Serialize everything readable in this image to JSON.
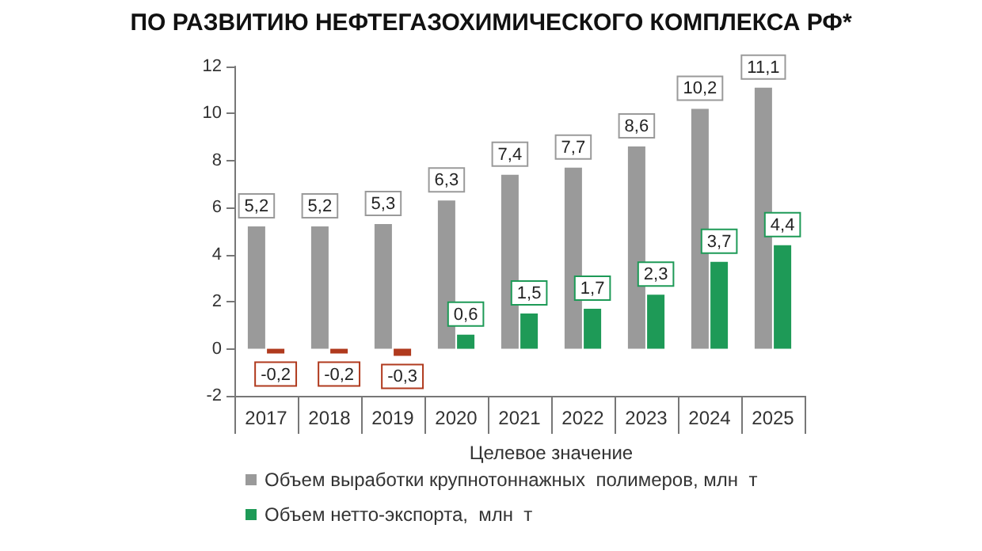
{
  "chart_data": {
    "type": "bar",
    "title": "ПО РАЗВИТИЮ НЕФТЕГАЗОХИМИЧЕСКОГО КОМПЛЕКСА РФ*",
    "xlabel": "Целевое значение",
    "categories": [
      "2017",
      "2018",
      "2019",
      "2020",
      "2021",
      "2022",
      "2023",
      "2024",
      "2025"
    ],
    "series": [
      {
        "name": "Объем выработки крупнотоннажных  полимеров, млн  т",
        "color": "#9a9a9a",
        "values": [
          5.2,
          5.2,
          5.3,
          6.3,
          7.4,
          7.7,
          8.6,
          10.2,
          11.1
        ],
        "value_labels": [
          "5,2",
          "5,2",
          "5,3",
          "6,3",
          "7,4",
          "7,7",
          "8,6",
          "10,2",
          "11,1"
        ]
      },
      {
        "name": "Объем нетто-экспорта,  млн  т",
        "color": "#1e9a57",
        "colors": [
          "#b03a1e",
          "#b03a1e",
          "#b03a1e",
          "#1e9a57",
          "#1e9a57",
          "#1e9a57",
          "#1e9a57",
          "#1e9a57",
          "#1e9a57"
        ],
        "values": [
          -0.2,
          -0.2,
          -0.3,
          0.6,
          1.5,
          1.7,
          2.3,
          3.7,
          4.4
        ],
        "value_labels": [
          "-0,2",
          "-0,2",
          "-0,3",
          "0,6",
          "1,5",
          "1,7",
          "2,3",
          "3,7",
          "4,4"
        ]
      }
    ],
    "ylim": [
      -2,
      12
    ],
    "yticks": [
      -2,
      0,
      2,
      4,
      6,
      8,
      10,
      12
    ],
    "grid": false,
    "legend": "bottom"
  }
}
